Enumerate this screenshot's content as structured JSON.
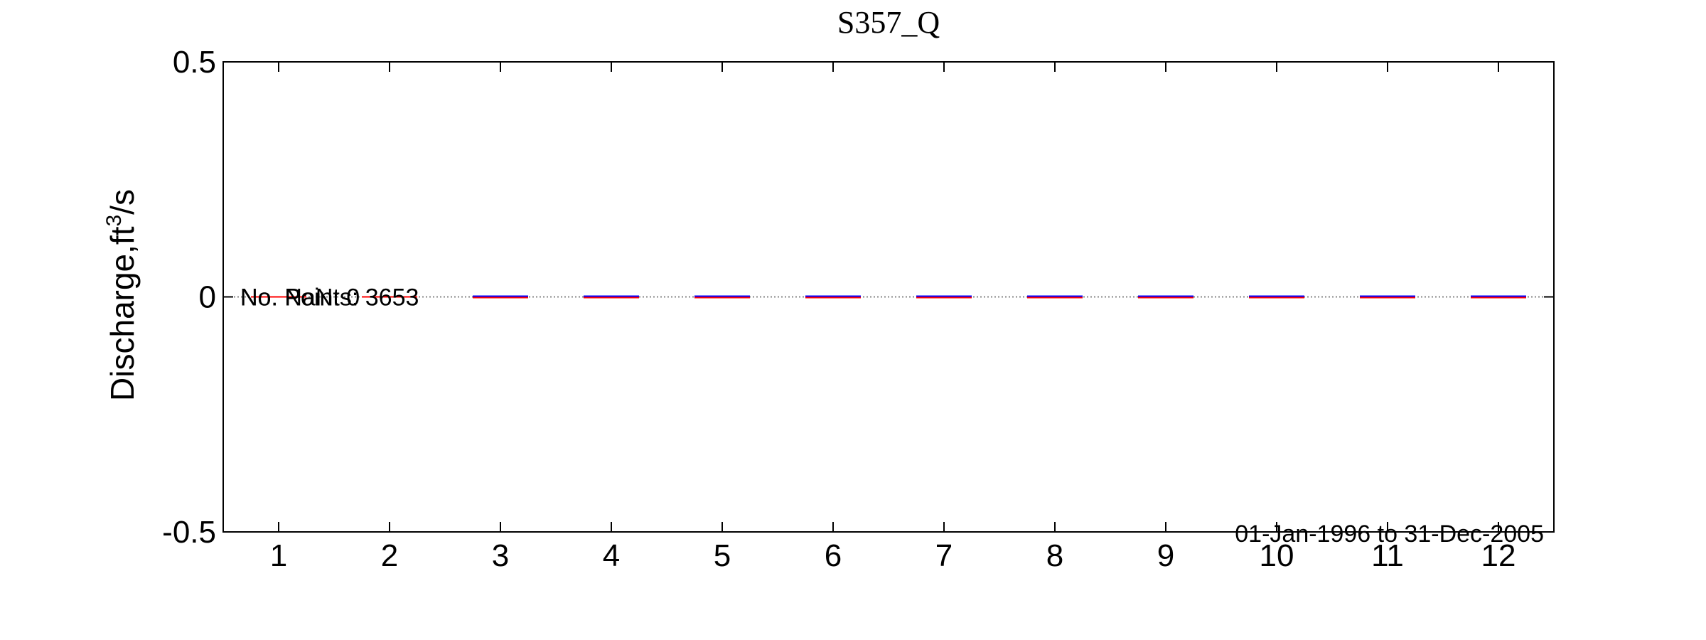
{
  "chart_data": {
    "type": "box",
    "title": "S357_Q",
    "ylabel_main": "Discharge,ft",
    "ylabel_sup": "3",
    "ylabel_tail": "/s",
    "xlabel": "",
    "categories": [
      "1",
      "2",
      "3",
      "4",
      "5",
      "6",
      "7",
      "8",
      "9",
      "10",
      "11",
      "12"
    ],
    "ylim": [
      -0.5,
      0.5
    ],
    "yticks": [
      -0.5,
      0,
      0.5
    ],
    "ytick_labels": [
      "-0.5",
      "0",
      "0.5"
    ],
    "reference_line": 0,
    "series": [
      {
        "values": [
          0,
          0,
          0,
          0,
          0,
          0,
          0,
          0,
          0,
          0,
          0,
          0
        ]
      }
    ],
    "annotations": {
      "points_label": "No. Points: 3653",
      "nan_label": "No. NaN: 0",
      "date_range": "01-Jan-1996 to 31-Dec-2005"
    },
    "colors": {
      "median": "#ff0000",
      "box": "#0000ff",
      "reference": "#888888",
      "axis": "#000000"
    },
    "grid": false
  }
}
